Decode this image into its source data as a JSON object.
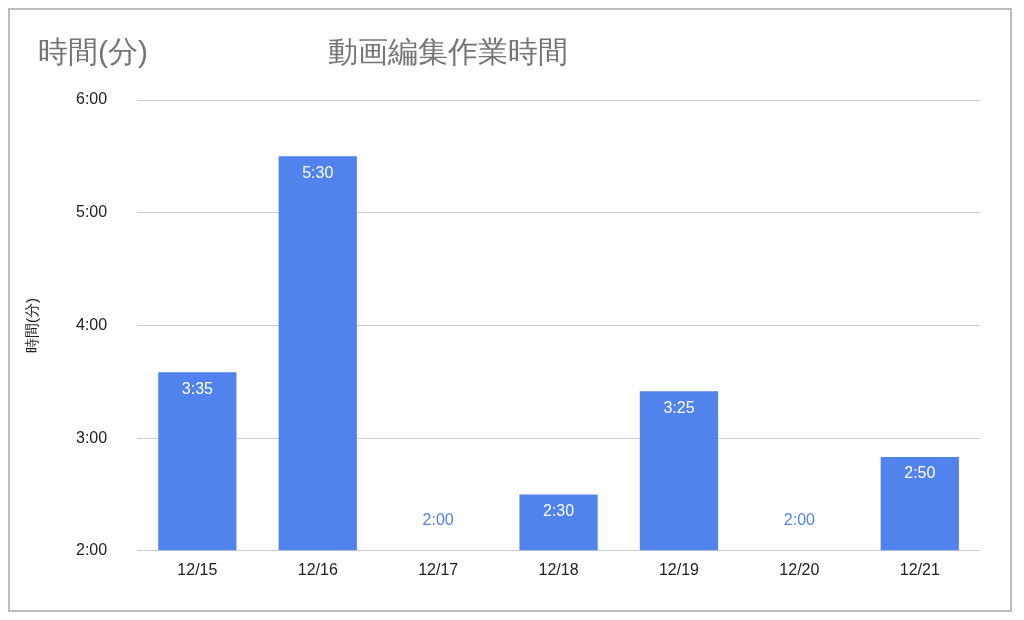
{
  "chart_data": {
    "type": "bar",
    "title": "動画編集作業時間",
    "ylabel": "時間(分)",
    "annotations": [
      "時間(分)"
    ],
    "categories": [
      "12/15",
      "12/16",
      "12/17",
      "12/18",
      "12/19",
      "12/20",
      "12/21"
    ],
    "values": [
      3.5833,
      5.5,
      2,
      2.5,
      3.4167,
      2,
      2.8333
    ],
    "value_labels": [
      "3:35",
      "5:30",
      "2:00",
      "2:30",
      "3:25",
      "2:00",
      "2:50"
    ],
    "color": "#5083ec",
    "ylim": [
      2,
      6
    ],
    "yticks": [
      {
        "value": 2,
        "label": "2:00"
      },
      {
        "value": 3,
        "label": "3:00"
      },
      {
        "value": 4,
        "label": "4:00"
      },
      {
        "value": 5,
        "label": "5:00"
      },
      {
        "value": 6,
        "label": "6:00"
      }
    ],
    "grid": "y"
  }
}
